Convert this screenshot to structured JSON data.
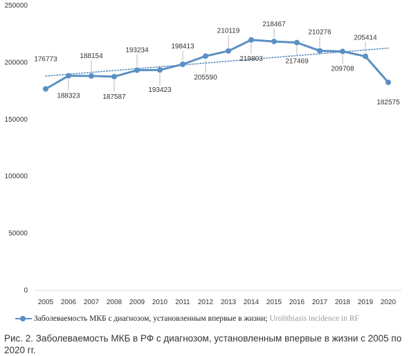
{
  "chart_data": {
    "type": "line",
    "categories": [
      "2005",
      "2006",
      "2007",
      "2008",
      "2009",
      "2010",
      "2011",
      "2012",
      "2013",
      "2014",
      "2015",
      "2016",
      "2017",
      "2018",
      "2019",
      "2020"
    ],
    "series": [
      {
        "name": "Заболеваемость МКБ с диагнозом, установленным впервые в жизни;",
        "values": [
          176773,
          188323,
          188154,
          187587,
          193234,
          193423,
          198413,
          205590,
          210119,
          219803,
          218467,
          217469,
          210276,
          209708,
          205414,
          182575
        ],
        "labels": [
          "176773",
          "188323",
          "188154",
          "187587",
          "193234",
          "193423",
          "198413",
          "205590",
          "210119",
          "219803",
          "218467",
          "217469",
          "210276",
          "209708",
          "205414",
          "182575"
        ],
        "color": "#5b8fc2"
      }
    ],
    "trendline": {
      "style": "dotted",
      "color": "#5b8fc2"
    },
    "legend_extra": "Urolithiasis incidence in RF",
    "yticks": [
      "0",
      "50000",
      "100000",
      "150000",
      "200000",
      "250000"
    ],
    "ylim": [
      0,
      250000
    ],
    "grid": false,
    "legend_position": "bottom"
  },
  "caption": "Рис. 2. Заболеваемость МКБ в РФ с диагнозом, установленным впервые в жизни с 2005 по 2020 гг."
}
